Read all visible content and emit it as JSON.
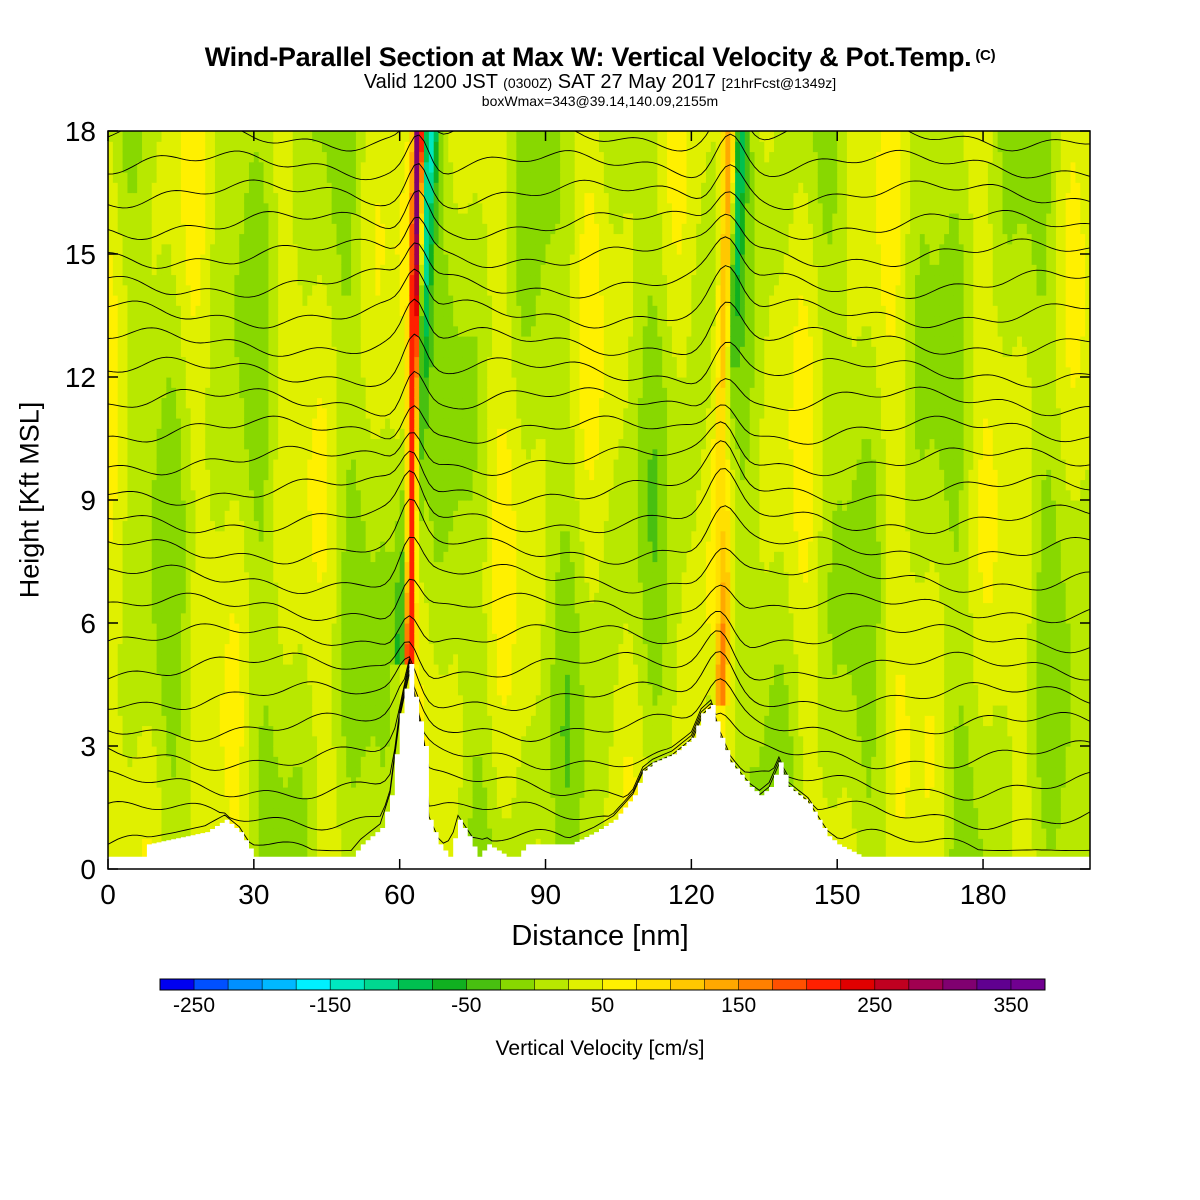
{
  "header": {
    "title": "Wind-Parallel Section at Max W: Vertical Velocity & Pot.Temp.",
    "copyright": "(C)",
    "valid_prefix": "Valid 1200 JST",
    "valid_utc": "(0300Z)",
    "valid_date": "SAT 27 May 2017",
    "forecast": "[21hrFcst@1349z]",
    "box_info": "boxWmax=343@39.14,140.09,2155m"
  },
  "colorbar": {
    "label": "Vertical Velocity [cm/s]",
    "tick_labels": [
      "-250",
      "-150",
      "-50",
      "50",
      "150",
      "250",
      "350"
    ],
    "tick_values": [
      -250,
      -150,
      -50,
      50,
      150,
      250,
      350
    ],
    "min": -275,
    "max": 375,
    "step": 25,
    "colors": [
      "#0000f0",
      "#0050ff",
      "#0090ff",
      "#00b8ff",
      "#00f0ff",
      "#00e8c0",
      "#00d890",
      "#00c050",
      "#10b020",
      "#48c010",
      "#88d800",
      "#b8e800",
      "#e0f000",
      "#fff000",
      "#ffe000",
      "#ffc800",
      "#ffa800",
      "#ff8000",
      "#ff5000",
      "#ff2000",
      "#e00000",
      "#c00020",
      "#a00050",
      "#800070",
      "#600090",
      "#700090"
    ]
  },
  "chart_data": {
    "type": "heatmap",
    "title": "Wind-Parallel Section at Max W: Vertical Velocity & Pot.Temp.",
    "xlabel": "Distance [nm]",
    "ylabel": "Height [Kft MSL]",
    "xlim": [
      0,
      202
    ],
    "ylim": [
      0,
      18
    ],
    "xticks": [
      0,
      30,
      60,
      90,
      120,
      150,
      180
    ],
    "yticks": [
      0,
      3,
      6,
      9,
      12,
      15,
      18
    ],
    "colorbar_label": "Vertical Velocity [cm/s]",
    "background_w": 20,
    "updraft_bands": [
      {
        "name": "primary",
        "x_bottom": 61,
        "x_top": 64,
        "peak_w": 343,
        "halfwidth": 1.2,
        "min_height": 5
      },
      {
        "name": "secondary",
        "x_bottom": 125,
        "x_top": 128,
        "peak_w": 160,
        "halfwidth": 1.6,
        "min_height": 4
      }
    ],
    "downdraft_bands": [
      {
        "name": "primary-downdraft",
        "x_bottom": 59,
        "x_top": 66,
        "peak_w": -170,
        "halfwidth": 1.8,
        "min_height": 5
      },
      {
        "name": "secondary-downdraft",
        "x_bottom": 123,
        "x_top": 130,
        "peak_w": -110,
        "halfwidth": 1.4,
        "min_height": 4
      }
    ],
    "terrain": {
      "x": [
        0,
        7,
        8,
        20,
        24,
        27,
        30,
        34,
        50,
        52,
        56,
        58,
        60,
        62,
        63,
        65,
        66,
        68,
        70,
        72,
        74,
        76,
        78,
        82,
        84,
        86,
        90,
        95,
        100,
        104,
        108,
        110,
        112,
        116,
        118,
        120,
        122,
        124,
        126,
        128,
        130,
        132,
        134,
        136,
        138,
        140,
        142,
        144,
        146,
        148,
        150,
        155,
        158,
        162,
        166,
        170,
        180,
        202
      ],
      "height": [
        0.3,
        0.3,
        0.6,
        0.9,
        1.2,
        0.9,
        0.3,
        0.3,
        0.3,
        0.6,
        1.0,
        1.8,
        3.8,
        5.0,
        4.2,
        3.0,
        1.2,
        0.6,
        0.3,
        1.2,
        0.8,
        0.3,
        0.6,
        0.3,
        0.3,
        0.6,
        0.6,
        0.6,
        0.9,
        1.2,
        1.8,
        2.4,
        2.6,
        2.8,
        3.0,
        3.2,
        3.8,
        4.0,
        3.2,
        2.6,
        2.3,
        2.0,
        1.8,
        2.0,
        2.6,
        2.0,
        1.8,
        1.6,
        1.2,
        0.8,
        0.6,
        0.3,
        0.3,
        0.3,
        0.3,
        0.3,
        0.3,
        0.3
      ]
    },
    "theta_levels_count": 26
  }
}
